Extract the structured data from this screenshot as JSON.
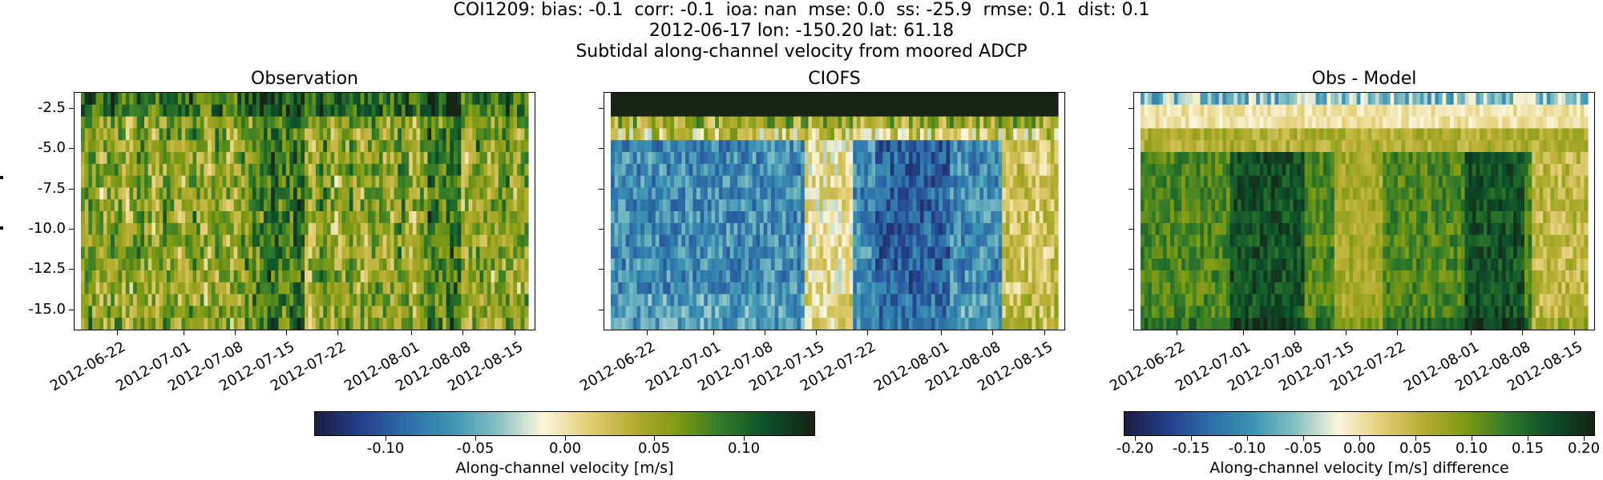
{
  "header": {
    "line1": "COI1209: bias: -0.1  corr: -0.1  ioa: nan  mse: 0.0  ss: -25.9  rmse: 0.1  dist: 0.1",
    "line2": "2012-06-17 lon: -150.20 lat: 61.18",
    "line3": "Subtidal along-channel velocity from moored ADCP"
  },
  "x_tick_labels": [
    "2012-06-22",
    "2012-07-01",
    "2012-07-08",
    "2012-07-15",
    "2012-07-22",
    "2012-08-01",
    "2012-08-08",
    "2012-08-15"
  ],
  "y_tick_labels": [
    "-2.5",
    "-5.0",
    "-7.5",
    "-10.0",
    "-12.5",
    "-15.0"
  ],
  "colorbars": [
    {
      "id": "cbar1",
      "label": "Along-channel velocity [m/s]",
      "ticks": [
        "-0.10",
        "-0.05",
        "0.00",
        "0.05",
        "0.10"
      ],
      "range": [
        -0.14,
        0.14
      ]
    },
    {
      "id": "cbar2",
      "label": "Along-channel velocity [m/s] difference",
      "ticks": [
        "-0.20",
        "-0.15",
        "-0.10",
        "-0.05",
        "0.00",
        "0.05",
        "0.10",
        "0.15",
        "0.20"
      ],
      "range": [
        -0.21,
        0.21
      ]
    }
  ],
  "colors": {
    "colormap": [
      "#1b1f44",
      "#24408c",
      "#2e6ea8",
      "#3c94b3",
      "#86c0c4",
      "#fbf6dc",
      "#e4cf78",
      "#b6ae32",
      "#7e9a13",
      "#2f7a2a",
      "#0c4f2a",
      "#172416"
    ]
  },
  "chart_data": [
    {
      "type": "heatmap",
      "title": "Observation",
      "x": {
        "start": "2012-06-17",
        "end": "2012-08-17",
        "ticks": [
          "2012-06-22",
          "2012-07-01",
          "2012-07-08",
          "2012-07-15",
          "2012-07-22",
          "2012-08-01",
          "2012-08-08",
          "2012-08-15"
        ]
      },
      "y": {
        "range": [
          -16.3,
          -1.5
        ],
        "ticks": [
          -2.5,
          -5.0,
          -7.5,
          -10.0,
          -12.5,
          -15.0
        ]
      },
      "color_range": [
        -0.14,
        0.14
      ],
      "colorbar": "cbar1",
      "typical_values": [
        0.03,
        0.09
      ]
    },
    {
      "type": "heatmap",
      "title": "CIOFS",
      "x": {
        "start": "2012-06-17",
        "end": "2012-08-17",
        "ticks": [
          "2012-06-22",
          "2012-07-01",
          "2012-07-08",
          "2012-07-15",
          "2012-07-22",
          "2012-08-01",
          "2012-08-08",
          "2012-08-15"
        ]
      },
      "y": {
        "range": [
          -16.3,
          -1.5
        ],
        "ticks": [
          -2.5,
          -5.0,
          -7.5,
          -10.0,
          -12.5,
          -15.0
        ]
      },
      "color_range": [
        -0.14,
        0.14
      ],
      "colorbar": "cbar1",
      "typical_values": [
        -0.12,
        0.12
      ]
    },
    {
      "type": "heatmap",
      "title": "Obs - Model",
      "x": {
        "start": "2012-06-17",
        "end": "2012-08-17",
        "ticks": [
          "2012-06-22",
          "2012-07-01",
          "2012-07-08",
          "2012-07-15",
          "2012-07-22",
          "2012-08-01",
          "2012-08-08",
          "2012-08-15"
        ]
      },
      "y": {
        "range": [
          -16.3,
          -1.5
        ],
        "ticks": [
          -2.5,
          -5.0,
          -7.5,
          -10.0,
          -12.5,
          -15.0
        ]
      },
      "color_range": [
        -0.21,
        0.21
      ],
      "colorbar": "cbar2",
      "typical_values": [
        -0.08,
        0.2
      ]
    }
  ]
}
